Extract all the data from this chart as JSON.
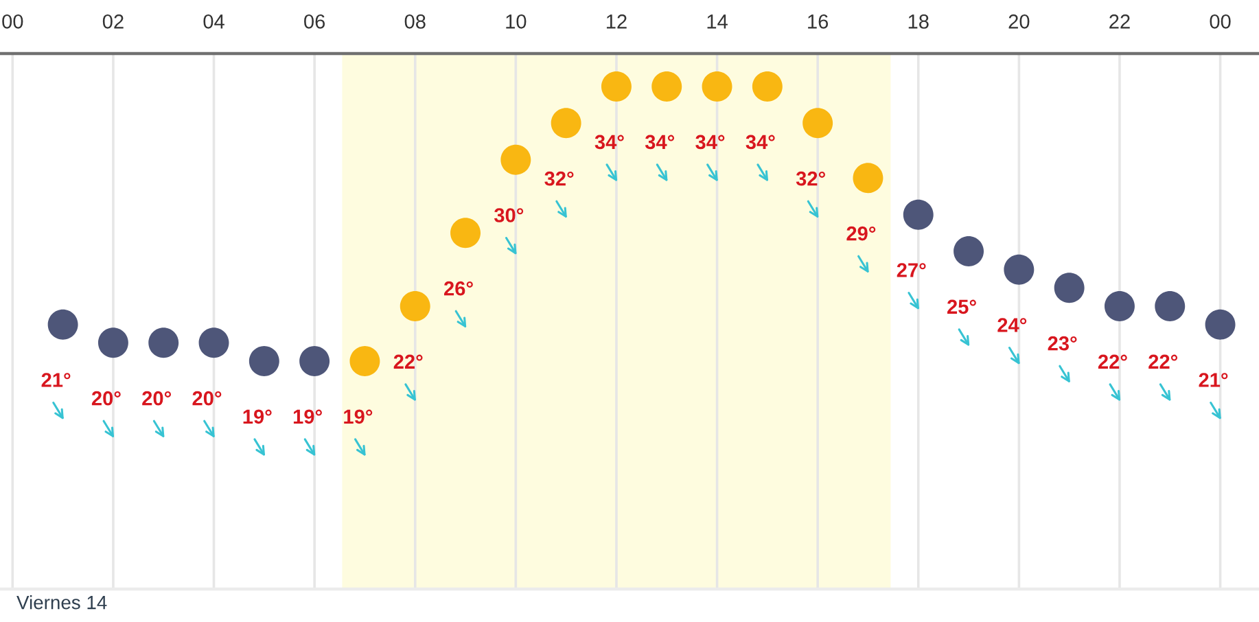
{
  "chart_data": {
    "type": "scatter",
    "annotations": [
      "Viernes 14"
    ],
    "x": [
      1,
      2,
      3,
      4,
      5,
      6,
      7,
      8,
      9,
      10,
      11,
      12,
      13,
      14,
      15,
      16,
      17,
      18,
      19,
      20,
      21,
      22,
      23,
      24
    ],
    "values": [
      21,
      20,
      20,
      20,
      19,
      19,
      19,
      22,
      26,
      30,
      32,
      34,
      34,
      34,
      34,
      32,
      29,
      27,
      25,
      24,
      23,
      22,
      22,
      21
    ],
    "value_labels": [
      "21°",
      "20°",
      "20°",
      "20°",
      "19°",
      "19°",
      "19°",
      "22°",
      "26°",
      "30°",
      "32°",
      "34°",
      "34°",
      "34°",
      "34°",
      "32°",
      "29°",
      "27°",
      "25°",
      "24°",
      "23°",
      "22°",
      "22°",
      "21°"
    ],
    "colors": [
      "#4e5679",
      "#4e5679",
      "#4e5679",
      "#4e5679",
      "#4e5679",
      "#4e5679",
      "#f9b712",
      "#f9b712",
      "#f9b712",
      "#f9b712",
      "#f9b712",
      "#f9b712",
      "#f9b712",
      "#f9b712",
      "#f9b712",
      "#f9b712",
      "#f9b712",
      "#4e5679",
      "#4e5679",
      "#4e5679",
      "#4e5679",
      "#4e5679",
      "#4e5679",
      "#4e5679"
    ],
    "marker": "circle",
    "xlim": [
      -0.25,
      24.77
    ],
    "xticks": [
      {
        "value": 0,
        "label": "00"
      },
      {
        "value": 2,
        "label": "02"
      },
      {
        "value": 4,
        "label": "04"
      },
      {
        "value": 6,
        "label": "06"
      },
      {
        "value": 8,
        "label": "08"
      },
      {
        "value": 10,
        "label": "10"
      },
      {
        "value": 12,
        "label": "12"
      },
      {
        "value": 14,
        "label": "14"
      },
      {
        "value": 16,
        "label": "16"
      },
      {
        "value": 18,
        "label": "18"
      },
      {
        "value": 20,
        "label": "20"
      },
      {
        "value": 22,
        "label": "22"
      },
      {
        "value": 24,
        "label": "00"
      }
    ],
    "grid": "x",
    "bands": [
      {
        "axis": "x",
        "from": 6.55,
        "to": 17.45,
        "color": "#fefcdf"
      }
    ],
    "tick_labels": "x"
  }
}
